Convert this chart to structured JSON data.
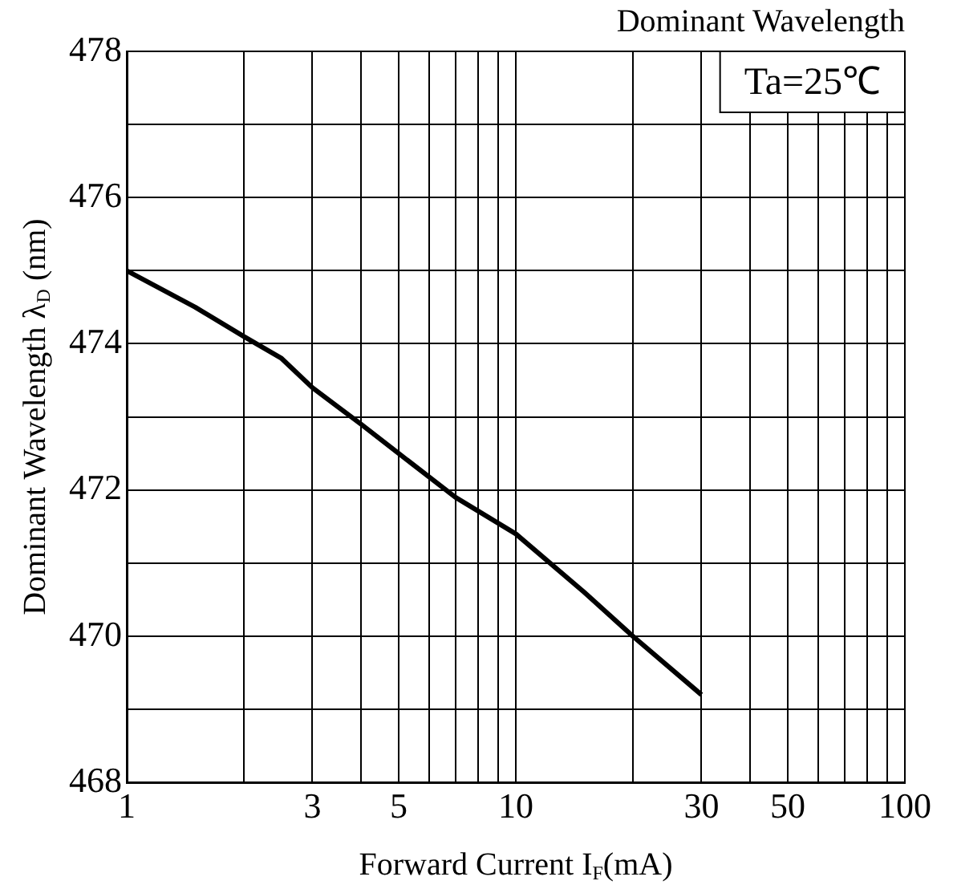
{
  "chart_data": {
    "type": "line",
    "title": "Dominant Wavelength",
    "xlabel": "Forward Current I$_{F}$(mA)",
    "ylabel": "Dominant Wavelength λ$_{D}$ (nm)",
    "annotations": [
      "Ta=25℃"
    ],
    "x": [
      1,
      1.5,
      2,
      2.5,
      3,
      4,
      5,
      7,
      10,
      15,
      20,
      30
    ],
    "series": [
      {
        "color": "#000000",
        "values": [
          475,
          474.5,
          474.1,
          473.8,
          473.4,
          472.9,
          472.5,
          471.9,
          471.4,
          470.6,
          470.0,
          469.2
        ]
      }
    ],
    "log": "x",
    "xlim": [
      1,
      100
    ],
    "xticks": [
      1,
      {
        "value": 2,
        "label": null
      },
      3,
      {
        "value": 4,
        "label": null
      },
      5,
      {
        "value": 6,
        "label": null
      },
      {
        "value": 7,
        "label": null
      },
      {
        "value": 8,
        "label": null
      },
      {
        "value": 9,
        "label": null
      },
      10,
      {
        "value": 20,
        "label": null
      },
      30,
      {
        "value": 40,
        "label": null
      },
      50,
      {
        "value": 60,
        "label": null
      },
      {
        "value": 70,
        "label": null
      },
      {
        "value": 80,
        "label": null
      },
      {
        "value": 90,
        "label": null
      },
      100
    ],
    "ylim": [
      468,
      478
    ],
    "yticks": [
      468,
      {
        "value": 469,
        "label": null
      },
      470,
      {
        "value": 471,
        "label": null
      },
      472,
      {
        "value": 473,
        "label": null
      },
      474,
      {
        "value": 475,
        "label": null
      },
      476,
      {
        "value": 477,
        "label": null
      },
      478
    ],
    "grid": true,
    "legend": false,
    "marker": "none",
    "line_style": "solid"
  }
}
